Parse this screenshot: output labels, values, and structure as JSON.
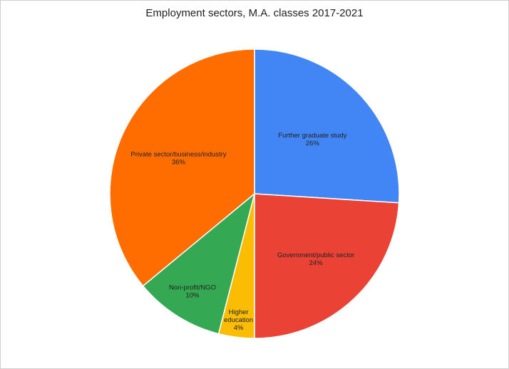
{
  "chart_data": {
    "type": "pie",
    "title": "Employment sectors, M.A. classes 2017-2021",
    "slices": [
      {
        "label": "Further graduate study",
        "value": 26,
        "percent_label": "26%",
        "color": "#4285F4"
      },
      {
        "label": "Government/public sector",
        "value": 24,
        "percent_label": "24%",
        "color": "#EA4335"
      },
      {
        "label": "Higher education",
        "label_lines": [
          "Higher",
          "education"
        ],
        "value": 4,
        "percent_label": "4%",
        "color": "#FBBC04"
      },
      {
        "label": "Non-profit/NGO",
        "value": 10,
        "percent_label": "10%",
        "color": "#34A853"
      },
      {
        "label": "Private sector/business/industry",
        "value": 36,
        "percent_label": "36%",
        "color": "#FF6D01"
      }
    ],
    "start_angle": "12 o'clock",
    "direction": "clockwise",
    "legend": "none"
  }
}
